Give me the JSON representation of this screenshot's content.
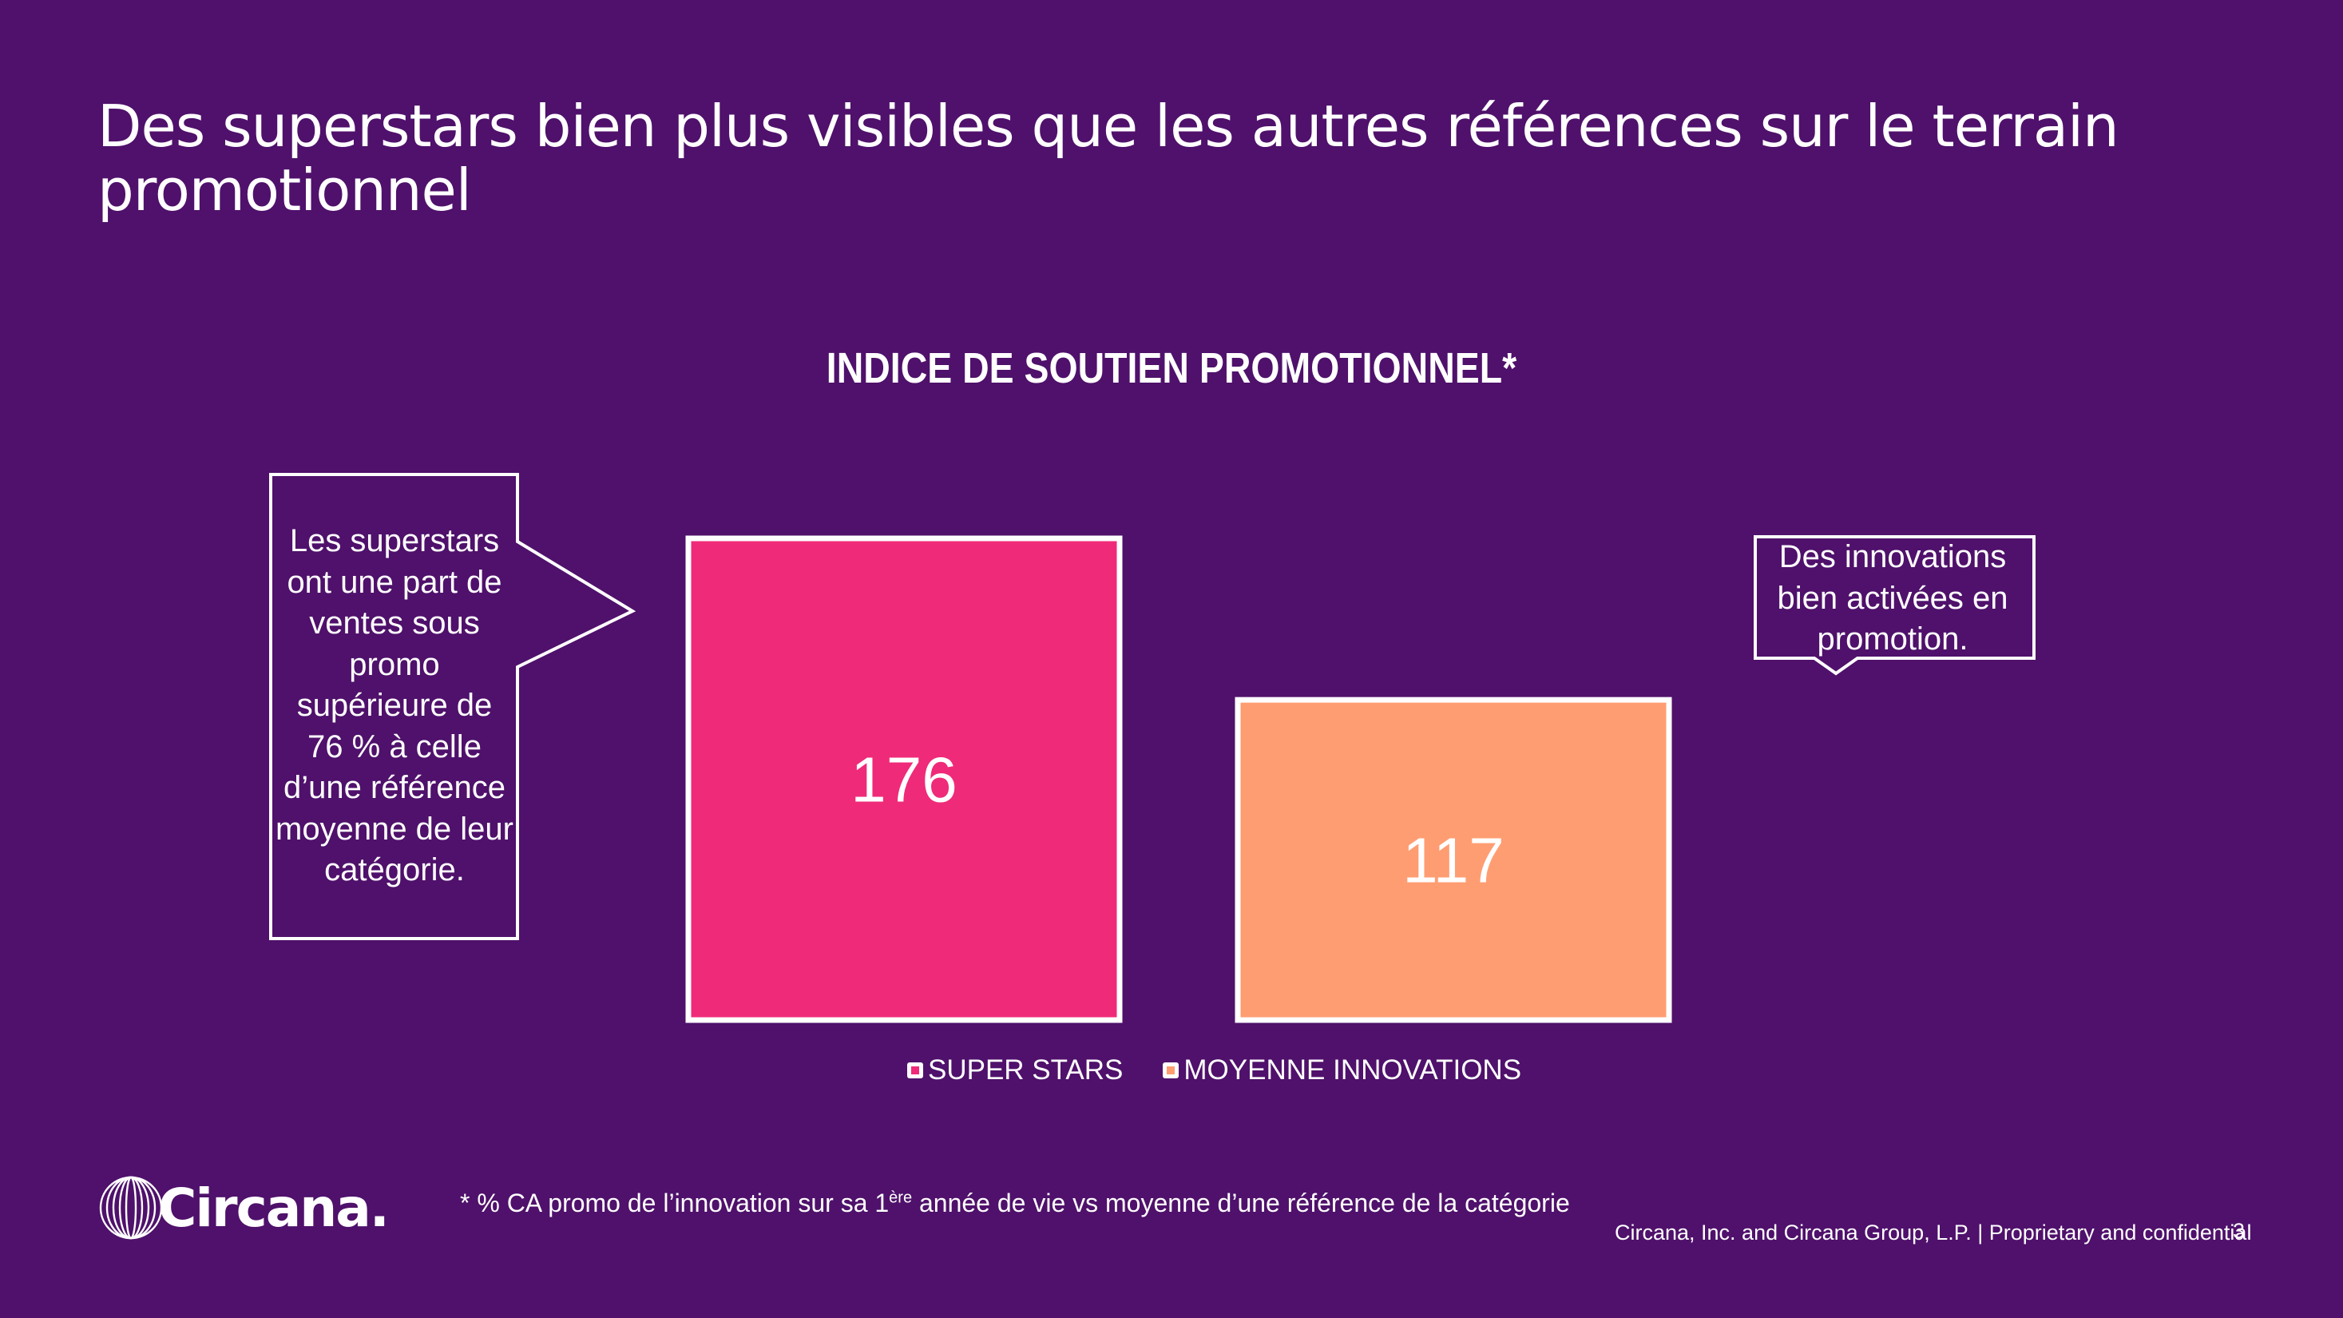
{
  "slide": {
    "title": "Des superstars bien plus visibles que les autres références sur le terrain promotionnel",
    "callout_left": "Les superstars ont une part de ventes sous promo supérieure de 76 % à celle d’une référence moyenne de leur catégorie.",
    "callout_right": "Des innovations bien activées en promotion.",
    "footnote_prefix": "* % CA promo de l’innovation sur sa 1",
    "footnote_sup": "ère",
    "footnote_suffix": " année de vie vs moyenne d’une référence de la catégorie",
    "logo_text": "Circana.",
    "copyright": "Circana, Inc. and Circana Group, L.P. |  Proprietary and confidential",
    "page_number": "3"
  },
  "chart_data": {
    "type": "bar",
    "title": "INDICE DE SOUTIEN PROMOTIONNEL*",
    "categories": [
      "SUPER STARS",
      "MOYENNE INNOVATIONS"
    ],
    "values": [
      176,
      117
    ],
    "colors": [
      "#ef2a79",
      "#ff9d72"
    ],
    "ylim": [
      0,
      176
    ],
    "grid": false,
    "legend_position": "bottom"
  },
  "colors": {
    "background": "#4f116b",
    "text": "#ffffff"
  }
}
